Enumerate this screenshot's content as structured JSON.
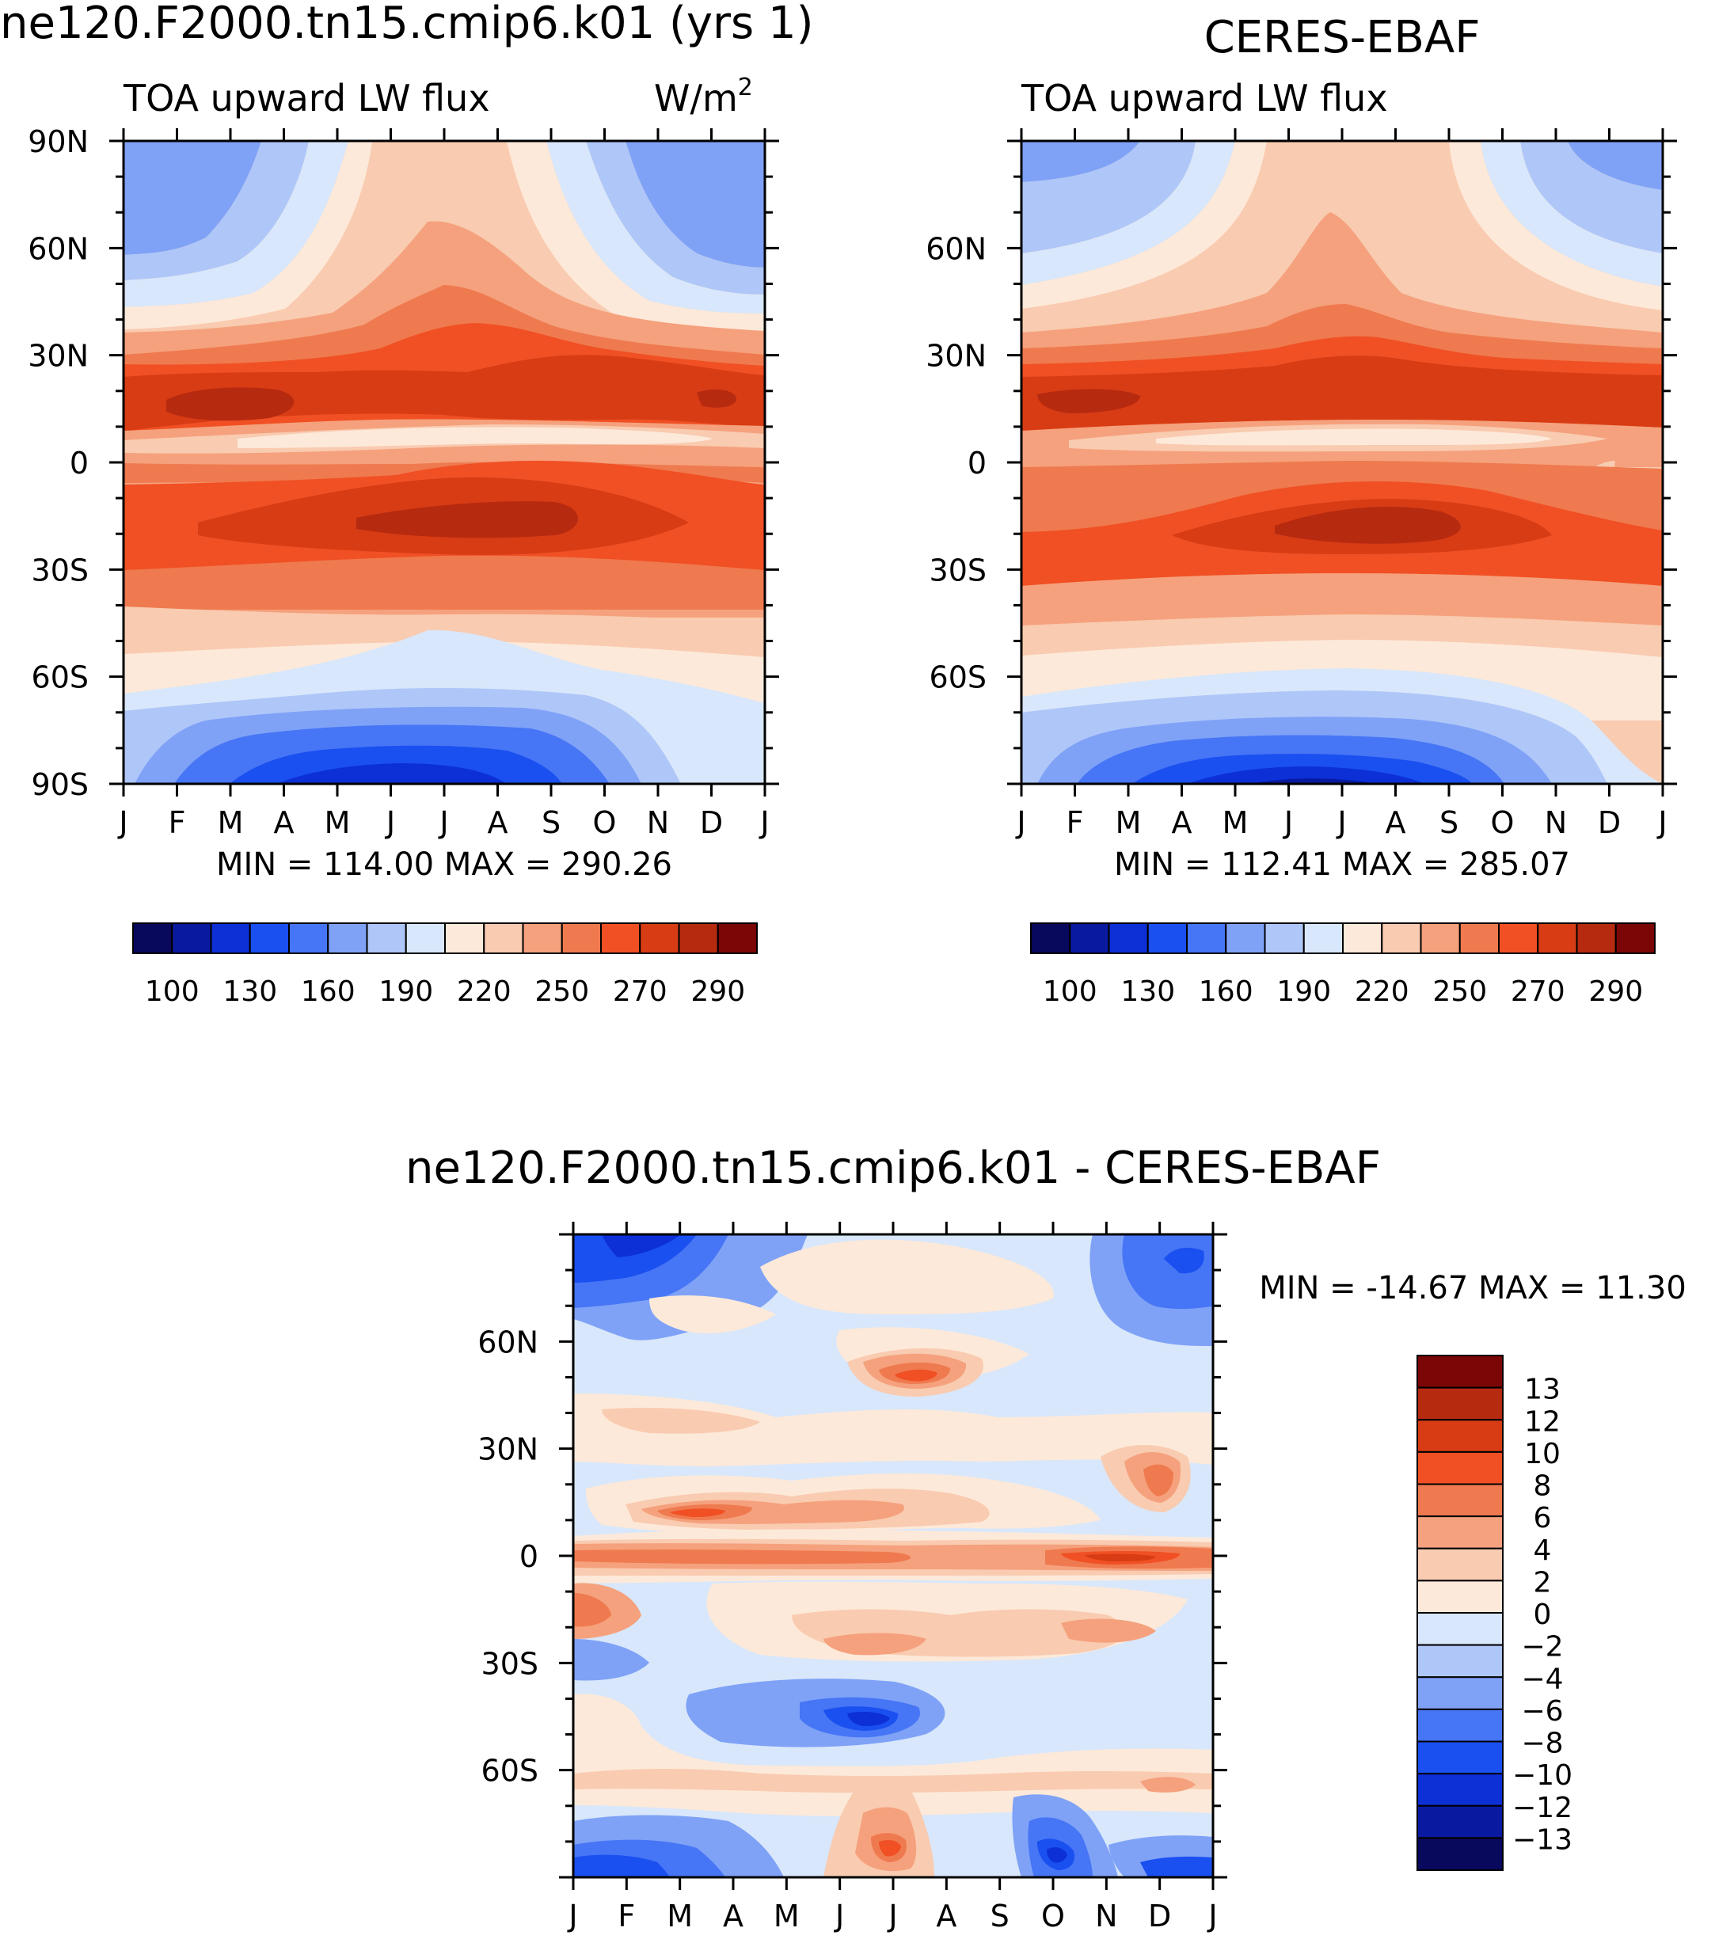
{
  "months": [
    "J",
    "F",
    "M",
    "A",
    "M",
    "J",
    "J",
    "A",
    "S",
    "O",
    "N",
    "D",
    "J"
  ],
  "colors": {
    "abs": [
      "#08085c",
      "#0a1aa0",
      "#0c2fd6",
      "#1a4ff0",
      "#4675f5",
      "#7fa2f7",
      "#afc6f8",
      "#d8e7fb",
      "#fde9d9",
      "#f9cbb0",
      "#f5a17d",
      "#ef7a4f",
      "#f05024",
      "#d83c14",
      "#b62a10",
      "#7b0606"
    ],
    "diff": [
      "#08085c",
      "#0a1aa0",
      "#0c2fd6",
      "#1a4ff0",
      "#4675f5",
      "#7fa2f7",
      "#afc6f8",
      "#d8e7fb",
      "#fde9d9",
      "#f9cbb0",
      "#f5a17d",
      "#ef7a4f",
      "#f05024",
      "#d83c14",
      "#b62a10",
      "#7b0606"
    ]
  },
  "chart_data": [
    {
      "type": "heatmap",
      "title": "ne120.F2000.tn15.cmip6.k01 (yrs 1)",
      "subtitle": "TOA upward LW flux",
      "units": "W/m",
      "units_sup": "2",
      "x_ticklabels": [
        "J",
        "F",
        "M",
        "A",
        "M",
        "J",
        "J",
        "A",
        "S",
        "O",
        "N",
        "D",
        "J"
      ],
      "y_ticklabels": [
        "90N",
        "60N",
        "30N",
        "0",
        "30S",
        "60S",
        "90S"
      ],
      "stats": "MIN = 114.00 MAX = 290.26",
      "min": 114.0,
      "max": 290.26,
      "colorbar_labels": [
        "100",
        "130",
        "160",
        "190",
        "220",
        "250",
        "270",
        "290"
      ]
    },
    {
      "type": "heatmap",
      "title": "CERES-EBAF",
      "subtitle": "TOA upward LW flux",
      "x_ticklabels": [
        "J",
        "F",
        "M",
        "A",
        "M",
        "J",
        "J",
        "A",
        "S",
        "O",
        "N",
        "D",
        "J"
      ],
      "y_ticklabels": [
        "60N",
        "30N",
        "0",
        "30S",
        "60S"
      ],
      "stats": "MIN = 112.41 MAX = 285.07",
      "min": 112.41,
      "max": 285.07,
      "colorbar_labels": [
        "100",
        "130",
        "160",
        "190",
        "220",
        "250",
        "270",
        "290"
      ]
    },
    {
      "type": "heatmap",
      "title": "ne120.F2000.tn15.cmip6.k01 - CERES-EBAF",
      "x_ticklabels": [
        "J",
        "F",
        "M",
        "A",
        "M",
        "J",
        "J",
        "A",
        "S",
        "O",
        "N",
        "D",
        "J"
      ],
      "y_ticklabels": [
        "60N",
        "30N",
        "0",
        "30S",
        "60S"
      ],
      "stats": "MIN = -14.67 MAX = 11.30",
      "min": -14.67,
      "max": 11.3,
      "colorbar_labels": [
        "13",
        "12",
        "10",
        "8",
        "6",
        "4",
        "2",
        "0",
        "-2",
        "-4",
        "-6",
        "-8",
        "-10",
        "-12",
        "-13"
      ]
    }
  ]
}
